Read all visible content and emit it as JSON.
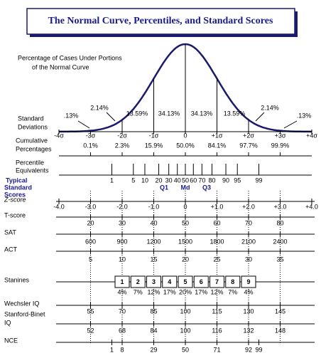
{
  "title": "The Normal Curve, Percentiles, and Standard Scores",
  "curve": {
    "caption": [
      "Percentage of Cases Under Portions",
      "of the Normal Curve"
    ],
    "area_percentages": [
      ".13%",
      "2.14%",
      "13.59%",
      "34.13%",
      "34.13%",
      "13.59%",
      "2.14%",
      ".13%"
    ]
  },
  "standard_deviations": {
    "label": [
      "Standard",
      "Deviations"
    ],
    "values": [
      "-4σ",
      "-3σ",
      "-2σ",
      "-1σ",
      "0",
      "+1σ",
      "+2σ",
      "+3σ",
      "+4σ"
    ]
  },
  "cumulative_percentages": {
    "label": [
      "Cumulative",
      "Percentages"
    ],
    "values": [
      "0.1%",
      "2.3%",
      "15.9%",
      "50.0%",
      "84.1%",
      "97.7%",
      "99.9%"
    ]
  },
  "percentile_equivalents": {
    "label": [
      "Percentile",
      "Equivalents"
    ],
    "values": [
      1,
      5,
      10,
      20,
      30,
      40,
      50,
      60,
      70,
      80,
      90,
      95,
      99
    ],
    "quartiles": [
      "Q1",
      "Md",
      "Q3"
    ]
  },
  "typical_standard_scores": [
    "Typical",
    "Standard",
    "Scores"
  ],
  "z_score": {
    "label": "Z-score",
    "values": [
      "-4.0",
      "-3.0",
      "-2.0",
      "-1.0",
      "0",
      "+1.0",
      "+2.0",
      "+3.0",
      "+4.0"
    ]
  },
  "t_score": {
    "label": "T-score",
    "values": [
      20,
      30,
      40,
      50,
      60,
      70,
      80
    ]
  },
  "sat": {
    "label": "SAT",
    "values": [
      600,
      900,
      1200,
      1500,
      1800,
      2100,
      2400
    ]
  },
  "act": {
    "label": "ACT",
    "values": [
      5,
      10,
      15,
      20,
      25,
      30,
      35
    ]
  },
  "stanines": {
    "label": "Stanines",
    "values": [
      1,
      2,
      3,
      4,
      5,
      6,
      7,
      8,
      9
    ],
    "percentages": [
      "4%",
      "7%",
      "12%",
      "17%",
      "20%",
      "17%",
      "12%",
      "7%",
      "4%"
    ]
  },
  "wechsler_iq": {
    "label": "Wechsler IQ",
    "values": [
      55,
      70,
      85,
      100,
      115,
      130,
      145
    ]
  },
  "stanford_binet_iq": {
    "label": [
      "Stanford-Binet",
      "IQ"
    ],
    "values": [
      52,
      68,
      84,
      100,
      116,
      132,
      148
    ]
  },
  "nce": {
    "label": "NCE",
    "values": [
      1,
      8,
      29,
      50,
      71,
      92,
      99
    ]
  }
}
